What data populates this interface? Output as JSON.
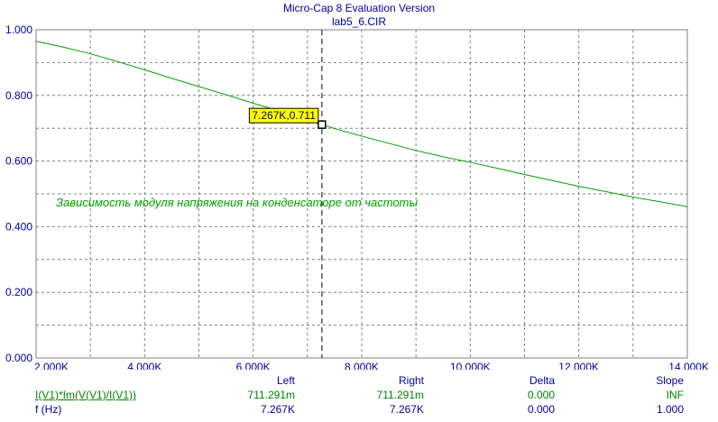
{
  "window": {
    "title": "Micro-Cap 8 Evaluation Version",
    "file": "lab5_6.CIR"
  },
  "colors": {
    "axis_text": "#0000a0",
    "curve": "#00a000",
    "grid": "#808080",
    "marker_fill": "#ffff00"
  },
  "chart_data": {
    "type": "line",
    "x_ticks": [
      "2.000K",
      "4.000K",
      "6.000K",
      "8.000K",
      "10.000K",
      "12.000K",
      "14.000K"
    ],
    "y_ticks": [
      "0.000",
      "0.200",
      "0.400",
      "0.600",
      "0.800",
      "1.000"
    ],
    "xlim": [
      2000,
      14000
    ],
    "ylim": [
      0,
      1
    ],
    "grid": true,
    "series": [
      {
        "x": [
          2000,
          2500,
          3000,
          3500,
          4000,
          4500,
          5000,
          5500,
          6000,
          6500,
          7000,
          7267,
          7500,
          8000,
          8500,
          9000,
          9500,
          10000,
          10500,
          11000,
          11500,
          12000,
          12500,
          13000,
          13500,
          14000
        ],
        "y": [
          0.965,
          0.947,
          0.927,
          0.903,
          0.878,
          0.852,
          0.827,
          0.802,
          0.776,
          0.752,
          0.725,
          0.711,
          0.699,
          0.676,
          0.654,
          0.632,
          0.613,
          0.596,
          0.578,
          0.559,
          0.541,
          0.523,
          0.507,
          0.49,
          0.476,
          0.461
        ]
      }
    ],
    "annotation": "Зависимость модуля напряжения на конденсаторе от частоты",
    "cursor": {
      "x": 7267,
      "y": 0.711,
      "label": "7.267K,0.711"
    }
  },
  "readout": {
    "headers": {
      "left": "Left",
      "right": "Right",
      "delta": "Delta",
      "slope": "Slope"
    },
    "rows": [
      {
        "name": "I(V1)*Im(V(V1)/I(V1))",
        "left": "711.291m",
        "right": "711.291m",
        "delta": "0.000",
        "slope": "INF"
      },
      {
        "name": "f (Hz)",
        "left": "7.267K",
        "right": "7.267K",
        "delta": "0.000",
        "slope": "1.000"
      }
    ]
  }
}
